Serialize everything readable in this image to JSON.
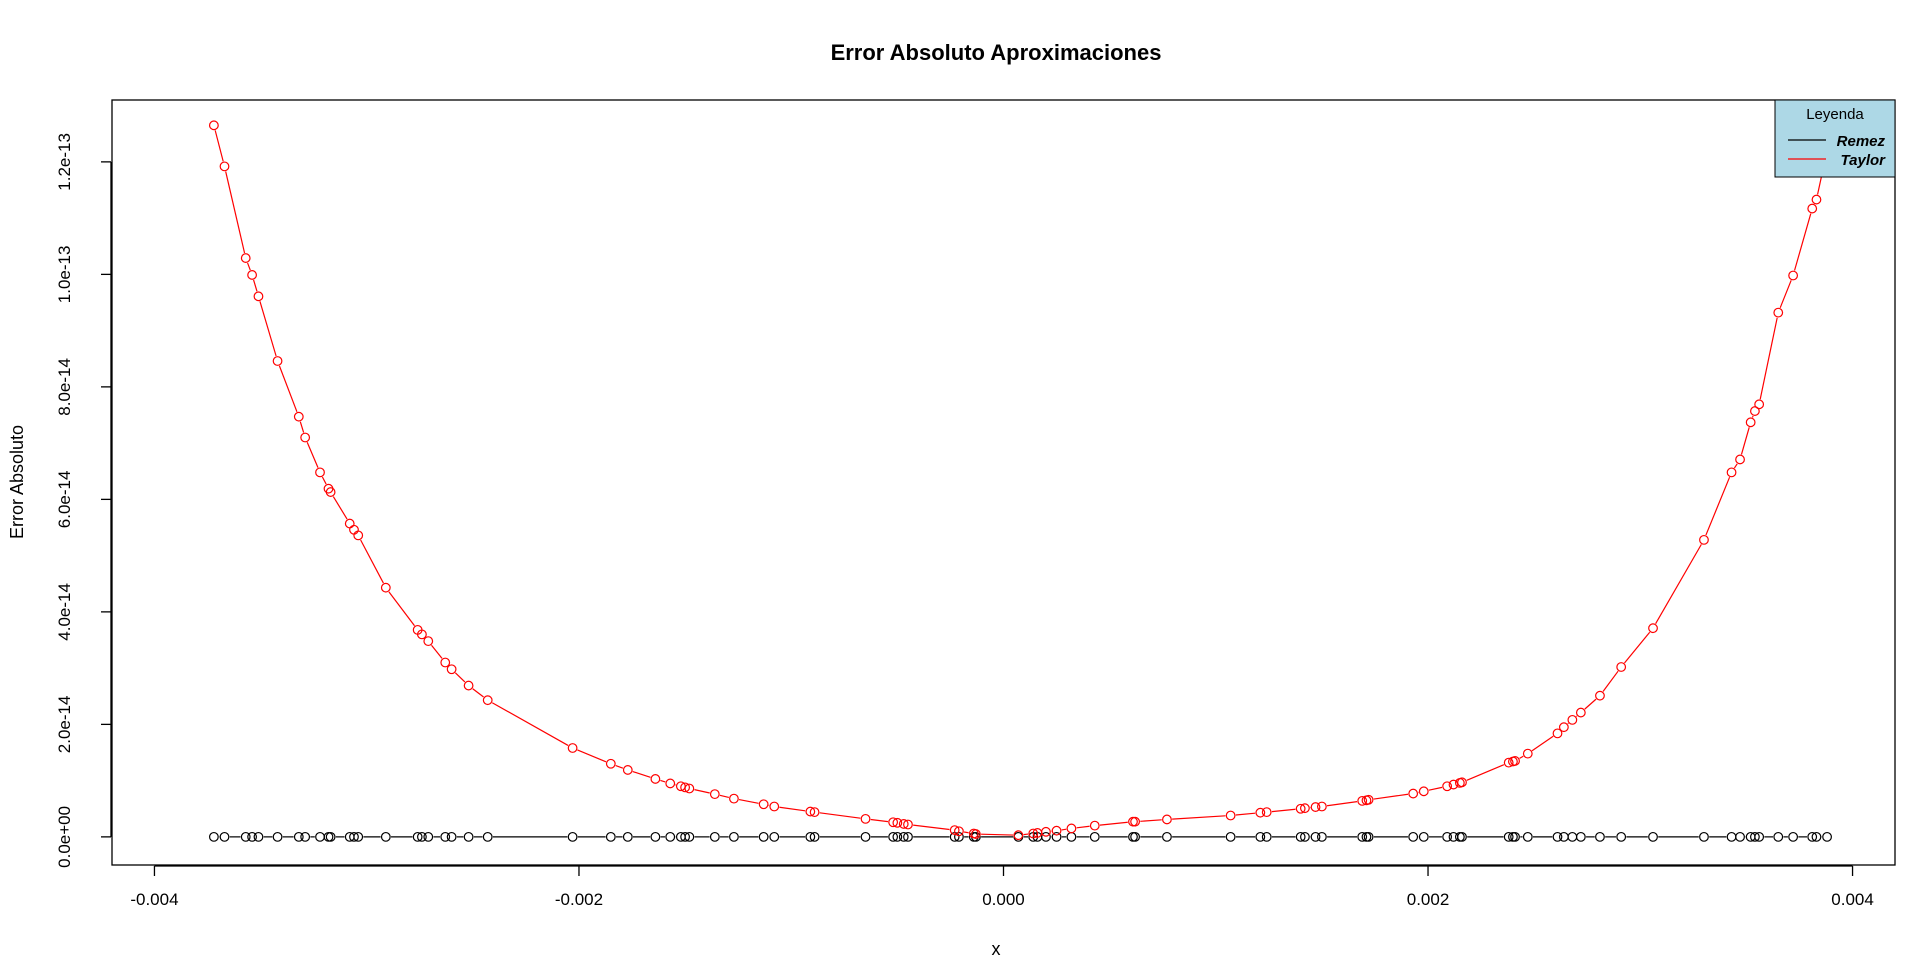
{
  "chart_data": {
    "type": "line",
    "title": "Error Absoluto Aproximaciones",
    "xlabel": "x",
    "ylabel": "Error Absoluto",
    "xlim": [
      -0.0042,
      0.0042
    ],
    "ylim": [
      -5e-15,
      1.31e-13
    ],
    "x_ticks": [
      -0.004,
      -0.002,
      0.0,
      0.002,
      0.004
    ],
    "x_tick_labels": [
      "-0.004",
      "-0.002",
      "0.000",
      "0.002",
      "0.004"
    ],
    "y_ticks": [
      0,
      2e-14,
      4e-14,
      6e-14,
      8e-14,
      1e-13,
      1.2e-13
    ],
    "y_tick_labels": [
      "0.0e+00",
      "2.0e-14",
      "4.0e-14",
      "6.0e-14",
      "8.0e-14",
      "1.0e-13",
      "1.2e-13"
    ],
    "grid": false,
    "legend": {
      "title": "Leyenda",
      "placement": "top-right",
      "background": "#add8e6",
      "entries": [
        "Remez",
        "Taylor"
      ]
    },
    "series": [
      {
        "name": "Remez",
        "color": "#000000",
        "y_constant": 0,
        "x": [
          -0.00372,
          -0.00367,
          -0.00357,
          -0.00354,
          -0.00351,
          -0.00342,
          -0.00332,
          -0.00329,
          -0.00322,
          -0.00318,
          -0.00317,
          -0.00308,
          -0.00306,
          -0.00304,
          -0.00291,
          -0.00276,
          -0.00274,
          -0.00271,
          -0.00263,
          -0.0026,
          -0.00252,
          -0.00243,
          -0.00203,
          -0.00185,
          -0.00177,
          -0.00164,
          -0.00157,
          -0.00152,
          -0.0015,
          -0.00148,
          -0.00136,
          -0.00127,
          -0.00113,
          -0.00108,
          -0.00091,
          -0.00089,
          -0.00065,
          -0.00052,
          -0.0005,
          -0.00047,
          -0.00045,
          -0.00023,
          -0.00021,
          -0.00014,
          -0.00013,
          7e-05,
          0.00014,
          0.00016,
          0.0002,
          0.00025,
          0.00032,
          0.00043,
          0.00061,
          0.00062,
          0.00077,
          0.00107,
          0.00121,
          0.00124,
          0.0014,
          0.00142,
          0.00147,
          0.0015,
          0.00169,
          0.00171,
          0.00172,
          0.00193,
          0.00198,
          0.00209,
          0.00212,
          0.00215,
          0.00216,
          0.00238,
          0.0024,
          0.00241,
          0.00247,
          0.00261,
          0.00264,
          0.00268,
          0.00272,
          0.00281,
          0.00291,
          0.00306,
          0.0033,
          0.00343,
          0.00347,
          0.00352,
          0.00354,
          0.00356,
          0.00365,
          0.00372,
          0.00381,
          0.00383,
          0.00388
        ]
      },
      {
        "name": "Taylor",
        "color": "#ff0000",
        "x": [
          -0.00372,
          -0.00367,
          -0.00357,
          -0.00354,
          -0.00351,
          -0.00342,
          -0.00332,
          -0.00329,
          -0.00322,
          -0.00318,
          -0.00317,
          -0.00308,
          -0.00306,
          -0.00304,
          -0.00291,
          -0.00276,
          -0.00274,
          -0.00271,
          -0.00263,
          -0.0026,
          -0.00252,
          -0.00243,
          -0.00203,
          -0.00185,
          -0.00177,
          -0.00164,
          -0.00157,
          -0.00152,
          -0.0015,
          -0.00148,
          -0.00136,
          -0.00127,
          -0.00113,
          -0.00108,
          -0.00091,
          -0.00089,
          -0.00065,
          -0.00052,
          -0.0005,
          -0.00047,
          -0.00045,
          -0.00023,
          -0.00021,
          -0.00014,
          -0.00013,
          7e-05,
          0.00014,
          0.00016,
          0.0002,
          0.00025,
          0.00032,
          0.00043,
          0.00061,
          0.00062,
          0.00077,
          0.00107,
          0.00121,
          0.00124,
          0.0014,
          0.00142,
          0.00147,
          0.0015,
          0.00169,
          0.00171,
          0.00172,
          0.00193,
          0.00198,
          0.00209,
          0.00212,
          0.00215,
          0.00216,
          0.00238,
          0.0024,
          0.00241,
          0.00247,
          0.00261,
          0.00264,
          0.00268,
          0.00272,
          0.00281,
          0.00291,
          0.00306,
          0.0033,
          0.00343,
          0.00347,
          0.00352,
          0.00354,
          0.00356,
          0.00365,
          0.00372,
          0.00381,
          0.00383,
          0.00388
        ],
        "y": [
          1.265e-13,
          1.192e-13,
          1.029e-13,
          9.99e-14,
          9.61e-14,
          8.46e-14,
          7.47e-14,
          7.1e-14,
          6.48e-14,
          6.19e-14,
          6.13e-14,
          5.57e-14,
          5.46e-14,
          5.36e-14,
          4.43e-14,
          3.68e-14,
          3.6e-14,
          3.48e-14,
          3.1e-14,
          2.98e-14,
          2.69e-14,
          2.43e-14,
          1.58e-14,
          1.3e-14,
          1.19e-14,
          1.03e-14,
          9.5e-15,
          9e-15,
          8.8e-15,
          8.6e-15,
          7.6e-15,
          6.8e-15,
          5.8e-15,
          5.4e-15,
          4.5e-15,
          4.4e-15,
          3.2e-15,
          2.6e-15,
          2.5e-15,
          2.3e-15,
          2.2e-15,
          1.2e-15,
          1e-15,
          6e-16,
          5e-16,
          3e-16,
          6e-16,
          7e-16,
          9e-16,
          1.1e-15,
          1.5e-15,
          2e-15,
          2.7e-15,
          2.7e-15,
          3.1e-15,
          3.8e-15,
          4.3e-15,
          4.4e-15,
          5e-15,
          5.1e-15,
          5.3e-15,
          5.4e-15,
          6.4e-15,
          6.5e-15,
          6.6e-15,
          7.7e-15,
          8.1e-15,
          9e-15,
          9.3e-15,
          9.6e-15,
          9.7e-15,
          1.32e-14,
          1.34e-14,
          1.35e-14,
          1.48e-14,
          1.84e-14,
          1.95e-14,
          2.08e-14,
          2.21e-14,
          2.51e-14,
          3.02e-14,
          3.71e-14,
          5.28e-14,
          6.48e-14,
          6.71e-14,
          7.37e-14,
          7.57e-14,
          7.69e-14,
          9.32e-14,
          9.98e-14,
          1.117e-13,
          1.133e-13,
          1.22e-13
        ]
      }
    ]
  }
}
